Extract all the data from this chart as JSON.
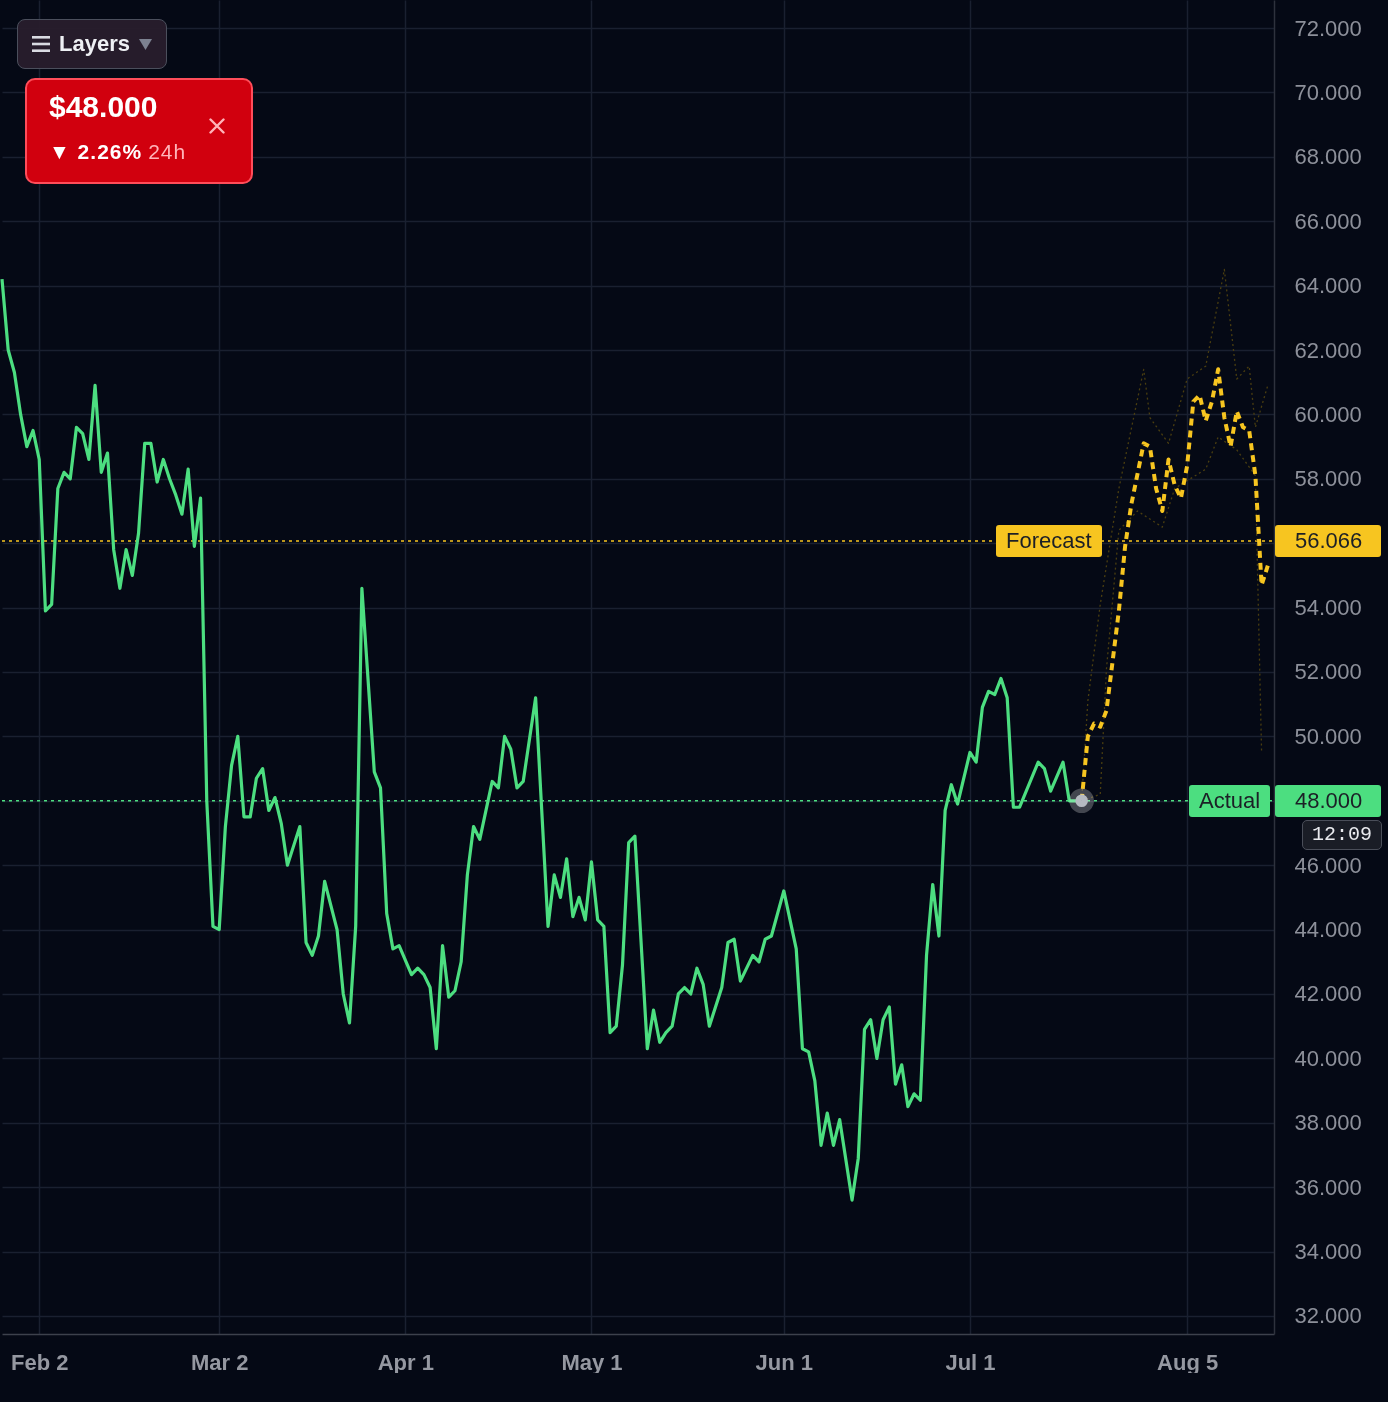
{
  "chart_data": {
    "type": "line",
    "xlim": [
      "--01-27",
      "--08-19"
    ],
    "xticks": [
      {
        "value": "--02-02",
        "label": "Feb 2"
      },
      {
        "value": "--03-02",
        "label": "Mar 2"
      },
      {
        "value": "--04-01",
        "label": "Apr 1"
      },
      {
        "value": "--05-01",
        "label": "May 1"
      },
      {
        "value": "--06-01",
        "label": "Jun 1"
      },
      {
        "value": "--07-01",
        "label": "Jul 1"
      },
      {
        "value": "--08-05",
        "label": "Aug 5"
      }
    ],
    "ylim": [
      31.44,
      72.87
    ],
    "yticks": [
      {
        "value": 32,
        "label": "32.000"
      },
      {
        "value": 34,
        "label": "34.000"
      },
      {
        "value": 36,
        "label": "36.000"
      },
      {
        "value": 38,
        "label": "38.000"
      },
      {
        "value": 40,
        "label": "40.000"
      },
      {
        "value": 42,
        "label": "42.000"
      },
      {
        "value": 44,
        "label": "44.000"
      },
      {
        "value": 46,
        "label": "46.000"
      },
      {
        "value": 48,
        "label": null
      },
      {
        "value": 50,
        "label": "50.000"
      },
      {
        "value": 52,
        "label": "52.000"
      },
      {
        "value": 54,
        "label": "54.000"
      },
      {
        "value": 56,
        "label": null
      },
      {
        "value": 58,
        "label": "58.000"
      },
      {
        "value": 60,
        "label": "60.000"
      },
      {
        "value": 62,
        "label": "62.000"
      },
      {
        "value": 64,
        "label": "64.000"
      },
      {
        "value": 66,
        "label": "66.000"
      },
      {
        "value": 68,
        "label": "68.000"
      },
      {
        "value": 70,
        "label": "70.000"
      },
      {
        "value": 72,
        "label": "72.000"
      }
    ],
    "grid": true,
    "series": [
      {
        "color": "#4cde80",
        "line_style": "solid",
        "x": [
          "--01-27",
          "--01-28",
          "--01-29",
          "--01-30",
          "--01-31",
          "--02-01",
          "--02-02",
          "--02-03",
          "--02-04",
          "--02-05",
          "--02-06",
          "--02-07",
          "--02-08",
          "--02-09",
          "--02-10",
          "--02-11",
          "--02-12",
          "--02-13",
          "--02-14",
          "--02-15",
          "--02-16",
          "--02-17",
          "--02-18",
          "--02-19",
          "--02-20",
          "--02-21",
          "--02-22",
          "--02-23",
          "--02-24",
          "--02-25",
          "--02-26",
          "--02-27",
          "--02-28",
          "--02-29",
          "--03-01",
          "--03-02",
          "--03-03",
          "--03-04",
          "--03-05",
          "--03-06",
          "--03-07",
          "--03-08",
          "--03-09",
          "--03-10",
          "--03-11",
          "--03-12",
          "--03-13",
          "--03-14",
          "--03-15",
          "--03-16",
          "--03-17",
          "--03-18",
          "--03-19",
          "--03-21",
          "--03-22",
          "--03-23",
          "--03-24",
          "--03-25",
          "--03-27",
          "--03-28",
          "--03-29",
          "--03-30",
          "--03-31",
          "--04-02",
          "--04-03",
          "--04-04",
          "--04-05",
          "--04-06",
          "--04-07",
          "--04-08",
          "--04-09",
          "--04-10",
          "--04-11",
          "--04-12",
          "--04-13",
          "--04-14",
          "--04-15",
          "--04-16",
          "--04-17",
          "--04-18",
          "--04-19",
          "--04-20",
          "--04-22",
          "--04-24",
          "--04-25",
          "--04-26",
          "--04-27",
          "--04-28",
          "--04-29",
          "--04-30",
          "--05-01",
          "--05-02",
          "--05-03",
          "--05-04",
          "--05-05",
          "--05-06",
          "--05-07",
          "--05-08",
          "--05-10",
          "--05-11",
          "--05-12",
          "--05-13",
          "--05-14",
          "--05-15",
          "--05-16",
          "--05-17",
          "--05-18",
          "--05-19",
          "--05-20",
          "--05-22",
          "--05-23",
          "--05-24",
          "--05-25",
          "--05-27",
          "--05-28",
          "--05-29",
          "--05-30",
          "--06-01",
          "--06-03",
          "--06-04",
          "--06-05",
          "--06-06",
          "--06-07",
          "--06-08",
          "--06-09",
          "--06-10",
          "--06-12",
          "--06-13",
          "--06-14",
          "--06-15",
          "--06-16",
          "--06-17",
          "--06-18",
          "--06-19",
          "--06-20",
          "--06-21",
          "--06-22",
          "--06-23",
          "--06-24",
          "--06-25",
          "--06-26",
          "--06-27",
          "--06-28",
          "--06-29",
          "--07-01",
          "--07-02",
          "--07-03",
          "--07-04",
          "--07-05",
          "--07-06",
          "--07-07",
          "--07-08",
          "--07-09",
          "--07-12",
          "--07-13",
          "--07-14",
          "--07-16",
          "--07-17",
          "--07-19"
        ],
        "values": [
          64.2,
          62.0,
          61.3,
          60.0,
          59.0,
          59.5,
          58.6,
          53.9,
          54.1,
          57.7,
          58.2,
          58.0,
          59.6,
          59.4,
          58.6,
          60.9,
          58.2,
          58.8,
          55.8,
          54.6,
          55.8,
          55.0,
          56.3,
          59.1,
          59.1,
          57.9,
          58.6,
          58.0,
          57.5,
          56.9,
          58.3,
          55.9,
          57.4,
          48.0,
          44.1,
          44.0,
          47.2,
          49.1,
          50.0,
          47.5,
          47.5,
          48.7,
          49.0,
          47.7,
          48.1,
          47.3,
          46.0,
          46.6,
          47.2,
          43.6,
          43.2,
          43.8,
          45.5,
          44.0,
          42.0,
          41.1,
          44.1,
          54.6,
          48.9,
          48.4,
          44.5,
          43.4,
          43.5,
          42.6,
          42.8,
          42.6,
          42.2,
          40.3,
          43.5,
          41.9,
          42.1,
          43.0,
          45.7,
          47.2,
          46.8,
          47.7,
          48.6,
          48.4,
          50.0,
          49.6,
          48.4,
          48.6,
          51.2,
          44.1,
          45.7,
          45.0,
          46.2,
          44.4,
          45.0,
          44.3,
          46.1,
          44.3,
          44.1,
          40.8,
          41.0,
          42.9,
          46.7,
          46.9,
          40.3,
          41.5,
          40.5,
          40.8,
          41.0,
          42.0,
          42.2,
          42.0,
          42.8,
          42.3,
          41.0,
          42.2,
          43.6,
          43.7,
          42.4,
          43.2,
          43.0,
          43.7,
          43.8,
          45.2,
          43.4,
          40.3,
          40.2,
          39.3,
          37.3,
          38.3,
          37.3,
          38.1,
          35.6,
          36.9,
          40.9,
          41.2,
          40.0,
          41.2,
          41.6,
          39.2,
          39.8,
          38.5,
          38.9,
          38.7,
          43.2,
          45.4,
          43.8,
          47.7,
          48.5,
          47.9,
          49.5,
          49.2,
          50.9,
          51.4,
          51.3,
          51.8,
          51.2,
          47.8,
          47.8,
          49.2,
          49.0,
          48.3,
          49.2,
          48.0,
          48.0
        ]
      },
      {
        "color": "#4a3e10",
        "line_style": "dotted",
        "x": [
          "--07-19",
          "--07-20",
          "--07-22",
          "--07-25",
          "--07-29",
          "--07-30",
          "--08-02",
          "--08-05",
          "--08-08",
          "--08-11",
          "--08-13",
          "--08-15",
          "--08-16",
          "--08-18"
        ],
        "values": [
          48.0,
          51.1,
          54.1,
          57.7,
          61.4,
          59.9,
          59.1,
          61.1,
          61.5,
          64.5,
          61.1,
          61.5,
          59.6,
          60.9
        ]
      },
      {
        "color": "#4a3e10",
        "line_style": "dotted",
        "x": [
          "--07-19",
          "--07-22",
          "--07-23",
          "--07-25",
          "--07-28",
          "--08-01",
          "--08-03",
          "--08-08",
          "--08-10",
          "--08-13",
          "--08-16",
          "--08-17"
        ],
        "values": [
          48.0,
          48.2,
          52.1,
          56.4,
          57.0,
          56.5,
          57.7,
          58.3,
          59.3,
          58.9,
          58.1,
          49.5
        ]
      },
      {
        "color": "#f7c520",
        "line_style": "dashed",
        "x": [
          "--07-19",
          "--07-20",
          "--07-21",
          "--07-22",
          "--07-23",
          "--07-25",
          "--07-26",
          "--07-27",
          "--07-29",
          "--07-30",
          "--07-31",
          "--08-01",
          "--08-02",
          "--08-03",
          "--08-04",
          "--08-05",
          "--08-06",
          "--08-07",
          "--08-08",
          "--08-09",
          "--08-10",
          "--08-11",
          "--08-12",
          "--08-13",
          "--08-14",
          "--08-15",
          "--08-16",
          "--08-17",
          "--08-18"
        ],
        "values": [
          48.0,
          50.0,
          50.4,
          50.3,
          50.8,
          53.9,
          55.9,
          57.2,
          59.1,
          59.0,
          57.7,
          57.0,
          58.6,
          57.8,
          57.4,
          58.4,
          60.4,
          60.6,
          59.8,
          60.4,
          61.4,
          59.9,
          59.0,
          60.1,
          59.6,
          59.5,
          58.1,
          54.7,
          55.3
        ]
      },
      {
        "type": "scatter",
        "color": "#9ea3ad",
        "marker": "circle",
        "x": [
          "--07-19"
        ],
        "values": [
          48.0
        ]
      }
    ],
    "ref_lines": [
      {
        "axis": "y",
        "value": 56.066,
        "label": "Forecast",
        "color": "#f7c520",
        "line_style": "dotted"
      },
      {
        "axis": "y",
        "value": 48,
        "label": "Actual",
        "color": "#4cde80",
        "line_style": "dotted"
      }
    ],
    "annotations": [
      "Layers",
      "$48.000",
      "▼ 2.26% 24h",
      "56.066",
      "48.000",
      "12:09"
    ]
  }
}
